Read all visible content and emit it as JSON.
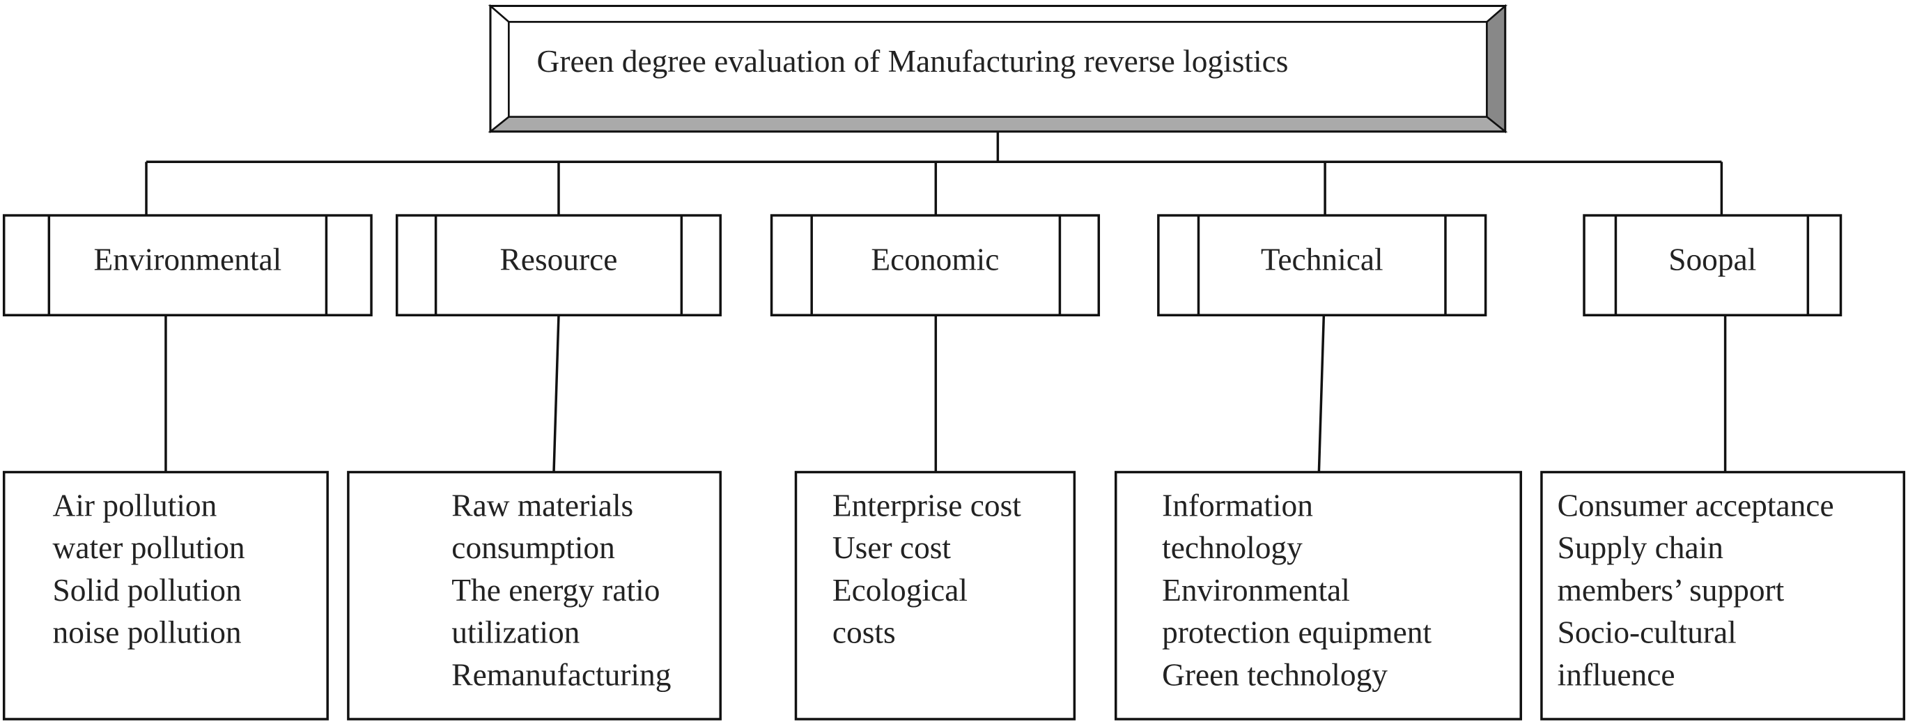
{
  "root": {
    "title": "Green degree evaluation of Manufacturing reverse logistics"
  },
  "nodes": [
    {
      "label": "Environmental",
      "items": [
        "Air pollution",
        "water pollution",
        "Solid pollution",
        "noise pollution"
      ]
    },
    {
      "label": "Resource",
      "items": [
        "Raw materials",
        "consumption",
        "The energy ratio",
        "utilization",
        "Remanufacturing"
      ]
    },
    {
      "label": "Economic",
      "items": [
        "Enterprise cost",
        "User cost",
        "Ecological",
        "costs"
      ]
    },
    {
      "label": "Technical",
      "items": [
        "Information",
        "technology",
        "Environmental",
        "protection equipment",
        "Green technology"
      ]
    },
    {
      "label": "Soopal",
      "items": [
        "Consumer acceptance",
        "Supply chain",
        "members’ support",
        "Socio-cultural",
        "influence"
      ]
    }
  ]
}
